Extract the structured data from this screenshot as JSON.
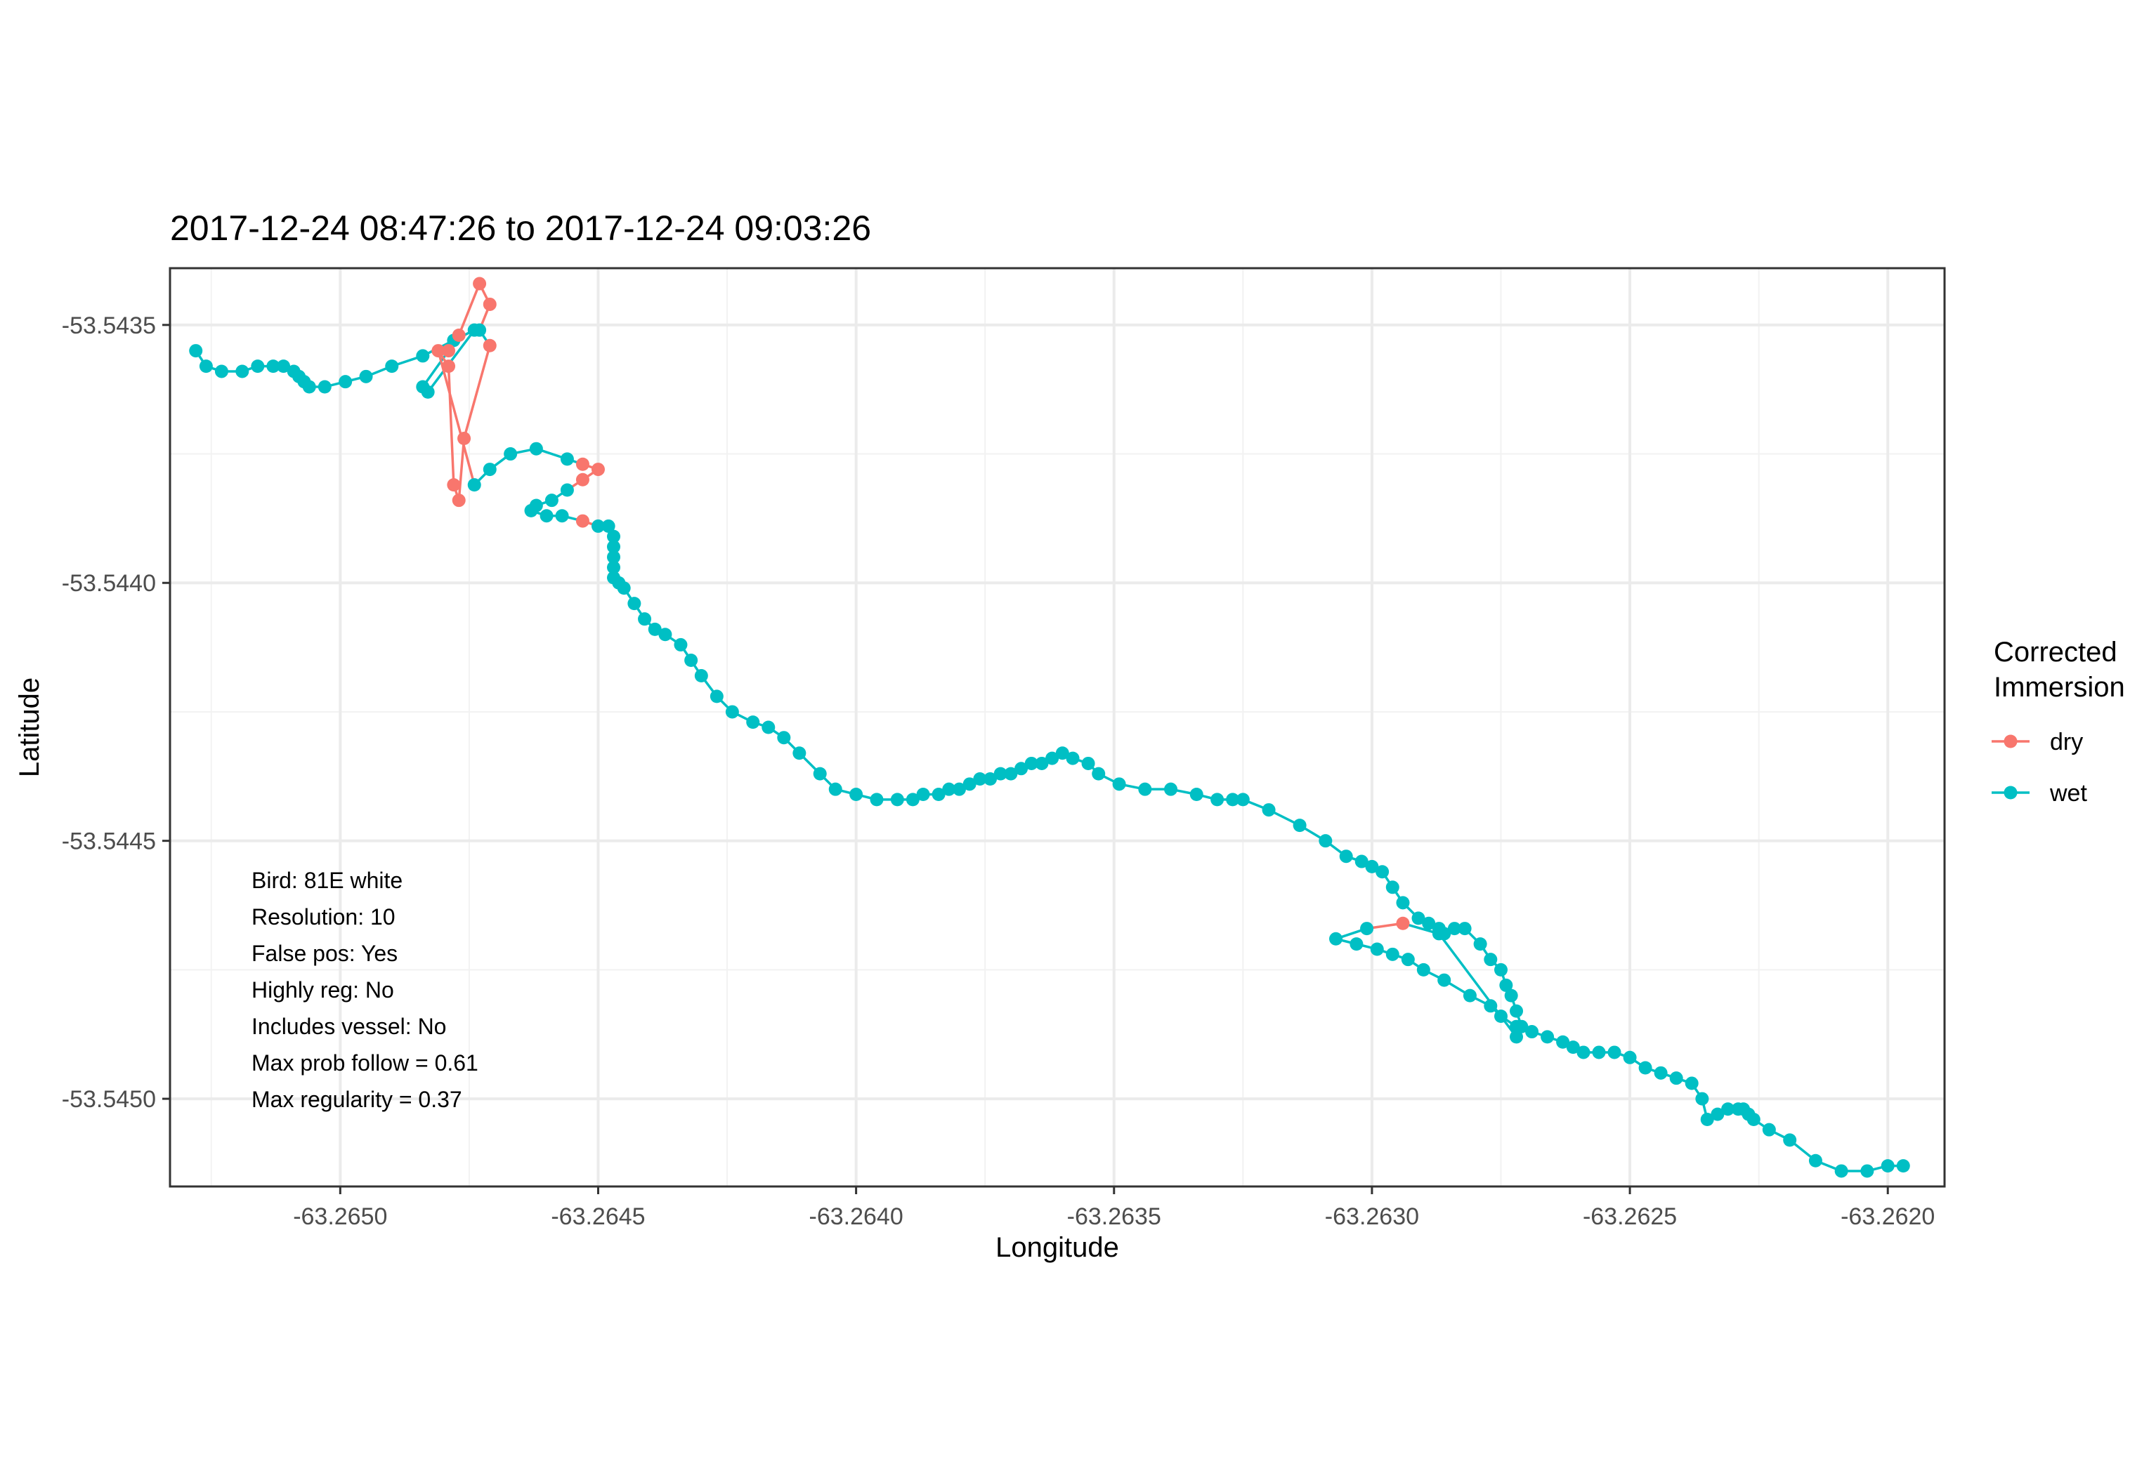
{
  "chart_data": {
    "type": "scatter",
    "title": "2017-12-24 08:47:26 to 2017-12-24 09:03:26",
    "xlabel": "Longitude",
    "ylabel": "Latitude",
    "xlim": [
      -63.26533,
      -63.26189
    ],
    "ylim": [
      -53.54517,
      -53.54339
    ],
    "x_ticks": [
      -63.265,
      -63.2645,
      -63.264,
      -63.2635,
      -63.263,
      -63.2625,
      -63.262
    ],
    "x_tick_labels": [
      "-63.2650",
      "-63.2645",
      "-63.2640",
      "-63.2635",
      "-63.2630",
      "-63.2625",
      "-63.2620"
    ],
    "y_ticks": [
      -53.5435,
      -53.544,
      -53.5445,
      -53.545
    ],
    "y_tick_labels": [
      "-53.5435",
      "-53.5440",
      "-53.5445",
      "-53.5450"
    ],
    "grid": true,
    "legend": {
      "title": [
        "Corrected",
        "Immersion"
      ],
      "position": "right",
      "entries": [
        {
          "label": "dry",
          "color": "#F8766D"
        },
        {
          "label": "wet",
          "color": "#00BFC4"
        }
      ]
    },
    "annotations": [
      "Bird: 81E white",
      "Resolution: 10",
      "False pos: Yes",
      "Highly reg: No",
      "Includes vessel: No",
      "Max prob follow = 0.61",
      "Max regularity = 0.37"
    ],
    "series": [
      {
        "name": "dry",
        "color": "#F8766D"
      },
      {
        "name": "wet",
        "color": "#00BFC4"
      }
    ],
    "track": [
      [
        -63.26528,
        -53.54355,
        "wet"
      ],
      [
        -63.26526,
        -53.54358,
        "wet"
      ],
      [
        -63.26523,
        -53.54359,
        "wet"
      ],
      [
        -63.26519,
        -53.54359,
        "wet"
      ],
      [
        -63.26516,
        -53.54358,
        "wet"
      ],
      [
        -63.26513,
        -53.54358,
        "wet"
      ],
      [
        -63.26511,
        -53.54358,
        "wet"
      ],
      [
        -63.26509,
        -53.54359,
        "wet"
      ],
      [
        -63.26508,
        -53.5436,
        "wet"
      ],
      [
        -63.26507,
        -53.54361,
        "wet"
      ],
      [
        -63.26506,
        -53.54362,
        "wet"
      ],
      [
        -63.26503,
        -53.54362,
        "wet"
      ],
      [
        -63.26499,
        -53.54361,
        "wet"
      ],
      [
        -63.26495,
        -53.5436,
        "wet"
      ],
      [
        -63.2649,
        -53.54358,
        "wet"
      ],
      [
        -63.26484,
        -53.54356,
        "wet"
      ],
      [
        -63.26478,
        -53.54353,
        "wet"
      ],
      [
        -63.26474,
        -53.54351,
        "wet"
      ],
      [
        -63.26483,
        -53.54363,
        "wet"
      ],
      [
        -63.26484,
        -53.54362,
        "wet"
      ],
      [
        -63.26479,
        -53.54355,
        "dry"
      ],
      [
        -63.26477,
        -53.54352,
        "dry"
      ],
      [
        -63.26473,
        -53.54342,
        "dry"
      ],
      [
        -63.26471,
        -53.54346,
        "dry"
      ],
      [
        -63.26473,
        -53.54351,
        "wet"
      ],
      [
        -63.26471,
        -53.54354,
        "dry"
      ],
      [
        -63.26476,
        -53.54372,
        "dry"
      ],
      [
        -63.26477,
        -53.54384,
        "dry"
      ],
      [
        -63.26478,
        -53.54381,
        "dry"
      ],
      [
        -63.26479,
        -53.54358,
        "dry"
      ],
      [
        -63.26481,
        -53.54355,
        "dry"
      ],
      [
        -63.26474,
        -53.54381,
        "wet"
      ],
      [
        -63.26471,
        -53.54378,
        "wet"
      ],
      [
        -63.26467,
        -53.54375,
        "wet"
      ],
      [
        -63.26462,
        -53.54374,
        "wet"
      ],
      [
        -63.26456,
        -53.54376,
        "wet"
      ],
      [
        -63.26453,
        -53.54377,
        "dry"
      ],
      [
        -63.2645,
        -53.54378,
        "dry"
      ],
      [
        -63.26453,
        -53.5438,
        "dry"
      ],
      [
        -63.26456,
        -53.54382,
        "wet"
      ],
      [
        -63.26459,
        -53.54384,
        "wet"
      ],
      [
        -63.26462,
        -53.54385,
        "wet"
      ],
      [
        -63.26463,
        -53.54386,
        "wet"
      ],
      [
        -63.2646,
        -53.54387,
        "wet"
      ],
      [
        -63.26457,
        -53.54387,
        "wet"
      ],
      [
        -63.26453,
        -53.54388,
        "dry"
      ],
      [
        -63.2645,
        -53.54389,
        "wet"
      ],
      [
        -63.26448,
        -53.54389,
        "wet"
      ],
      [
        -63.26447,
        -53.54391,
        "wet"
      ],
      [
        -63.26447,
        -53.54393,
        "wet"
      ],
      [
        -63.26447,
        -53.54395,
        "wet"
      ],
      [
        -63.26447,
        -53.54397,
        "wet"
      ],
      [
        -63.26447,
        -53.54399,
        "wet"
      ],
      [
        -63.26446,
        -53.544,
        "wet"
      ],
      [
        -63.26445,
        -53.54401,
        "wet"
      ],
      [
        -63.26443,
        -53.54404,
        "wet"
      ],
      [
        -63.26441,
        -53.54407,
        "wet"
      ],
      [
        -63.26439,
        -53.54409,
        "wet"
      ],
      [
        -63.26437,
        -53.5441,
        "wet"
      ],
      [
        -63.26434,
        -53.54412,
        "wet"
      ],
      [
        -63.26432,
        -53.54415,
        "wet"
      ],
      [
        -63.2643,
        -53.54418,
        "wet"
      ],
      [
        -63.26427,
        -53.54422,
        "wet"
      ],
      [
        -63.26424,
        -53.54425,
        "wet"
      ],
      [
        -63.2642,
        -53.54427,
        "wet"
      ],
      [
        -63.26417,
        -53.54428,
        "wet"
      ],
      [
        -63.26414,
        -53.5443,
        "wet"
      ],
      [
        -63.26411,
        -53.54433,
        "wet"
      ],
      [
        -63.26407,
        -53.54437,
        "wet"
      ],
      [
        -63.26404,
        -53.5444,
        "wet"
      ],
      [
        -63.264,
        -53.54441,
        "wet"
      ],
      [
        -63.26396,
        -53.54442,
        "wet"
      ],
      [
        -63.26392,
        -53.54442,
        "wet"
      ],
      [
        -63.26389,
        -53.54442,
        "wet"
      ],
      [
        -63.26387,
        -53.54441,
        "wet"
      ],
      [
        -63.26384,
        -53.54441,
        "wet"
      ],
      [
        -63.26382,
        -53.5444,
        "wet"
      ],
      [
        -63.2638,
        -53.5444,
        "wet"
      ],
      [
        -63.26378,
        -53.54439,
        "wet"
      ],
      [
        -63.26376,
        -53.54438,
        "wet"
      ],
      [
        -63.26374,
        -53.54438,
        "wet"
      ],
      [
        -63.26372,
        -53.54437,
        "wet"
      ],
      [
        -63.2637,
        -53.54437,
        "wet"
      ],
      [
        -63.26368,
        -53.54436,
        "wet"
      ],
      [
        -63.26366,
        -53.54435,
        "wet"
      ],
      [
        -63.26364,
        -53.54435,
        "wet"
      ],
      [
        -63.26362,
        -53.54434,
        "wet"
      ],
      [
        -63.2636,
        -53.54433,
        "wet"
      ],
      [
        -63.26358,
        -53.54434,
        "wet"
      ],
      [
        -63.26355,
        -53.54435,
        "wet"
      ],
      [
        -63.26353,
        -53.54437,
        "wet"
      ],
      [
        -63.26349,
        -53.54439,
        "wet"
      ],
      [
        -63.26344,
        -53.5444,
        "wet"
      ],
      [
        -63.26339,
        -53.5444,
        "wet"
      ],
      [
        -63.26334,
        -53.54441,
        "wet"
      ],
      [
        -63.2633,
        -53.54442,
        "wet"
      ],
      [
        -63.26327,
        -53.54442,
        "wet"
      ],
      [
        -63.26325,
        -53.54442,
        "wet"
      ],
      [
        -63.2632,
        -53.54444,
        "wet"
      ],
      [
        -63.26314,
        -53.54447,
        "wet"
      ],
      [
        -63.26309,
        -53.5445,
        "wet"
      ],
      [
        -63.26305,
        -53.54453,
        "wet"
      ],
      [
        -63.26302,
        -53.54454,
        "wet"
      ],
      [
        -63.263,
        -53.54455,
        "wet"
      ],
      [
        -63.26298,
        -53.54456,
        "wet"
      ],
      [
        -63.26296,
        -53.54459,
        "wet"
      ],
      [
        -63.26294,
        -53.54462,
        "wet"
      ],
      [
        -63.26291,
        -53.54465,
        "wet"
      ],
      [
        -63.26289,
        -53.54466,
        "wet"
      ],
      [
        -63.26287,
        -53.54467,
        "wet"
      ],
      [
        -63.26286,
        -53.54468,
        "wet"
      ],
      [
        -63.26284,
        -53.54467,
        "wet"
      ],
      [
        -63.26282,
        -53.54467,
        "wet"
      ],
      [
        -63.26279,
        -53.5447,
        "wet"
      ],
      [
        -63.26277,
        -53.54473,
        "wet"
      ],
      [
        -63.26275,
        -53.54475,
        "wet"
      ],
      [
        -63.26274,
        -53.54478,
        "wet"
      ],
      [
        -63.26273,
        -53.5448,
        "wet"
      ],
      [
        -63.26272,
        -53.54483,
        "wet"
      ],
      [
        -63.26271,
        -53.54486,
        "wet"
      ],
      [
        -63.26272,
        -53.54488,
        "wet"
      ],
      [
        -63.26287,
        -53.54468,
        "wet"
      ],
      [
        -63.26294,
        -53.54466,
        "dry"
      ],
      [
        -63.26301,
        -53.54467,
        "wet"
      ],
      [
        -63.26307,
        -53.54469,
        "wet"
      ],
      [
        -63.26303,
        -53.5447,
        "wet"
      ],
      [
        -63.26299,
        -53.54471,
        "wet"
      ],
      [
        -63.26296,
        -53.54472,
        "wet"
      ],
      [
        -63.26293,
        -53.54473,
        "wet"
      ],
      [
        -63.2629,
        -53.54475,
        "wet"
      ],
      [
        -63.26286,
        -53.54477,
        "wet"
      ],
      [
        -63.26281,
        -53.5448,
        "wet"
      ],
      [
        -63.26277,
        -53.54482,
        "wet"
      ],
      [
        -63.26275,
        -53.54484,
        "wet"
      ],
      [
        -63.26272,
        -53.54486,
        "wet"
      ],
      [
        -63.26269,
        -53.54487,
        "wet"
      ],
      [
        -63.26266,
        -53.54488,
        "wet"
      ],
      [
        -63.26263,
        -53.54489,
        "wet"
      ],
      [
        -63.26261,
        -53.5449,
        "wet"
      ],
      [
        -63.26259,
        -53.54491,
        "wet"
      ],
      [
        -63.26256,
        -53.54491,
        "wet"
      ],
      [
        -63.26253,
        -53.54491,
        "wet"
      ],
      [
        -63.2625,
        -53.54492,
        "wet"
      ],
      [
        -63.26247,
        -53.54494,
        "wet"
      ],
      [
        -63.26244,
        -53.54495,
        "wet"
      ],
      [
        -63.26241,
        -53.54496,
        "wet"
      ],
      [
        -63.26238,
        -53.54497,
        "wet"
      ],
      [
        -63.26236,
        -53.545,
        "wet"
      ],
      [
        -63.26235,
        -53.54504,
        "wet"
      ],
      [
        -63.26233,
        -53.54503,
        "wet"
      ],
      [
        -63.26231,
        -53.54502,
        "wet"
      ],
      [
        -63.26229,
        -53.54502,
        "wet"
      ],
      [
        -63.26228,
        -53.54502,
        "wet"
      ],
      [
        -63.26227,
        -53.54503,
        "wet"
      ],
      [
        -63.26226,
        -53.54504,
        "wet"
      ],
      [
        -63.26223,
        -53.54506,
        "wet"
      ],
      [
        -63.26219,
        -53.54508,
        "wet"
      ],
      [
        -63.26214,
        -53.54512,
        "wet"
      ],
      [
        -63.26209,
        -53.54514,
        "wet"
      ],
      [
        -63.26204,
        -53.54514,
        "wet"
      ],
      [
        -63.262,
        -53.54513,
        "wet"
      ],
      [
        -63.26197,
        -53.54513,
        "wet"
      ]
    ]
  }
}
